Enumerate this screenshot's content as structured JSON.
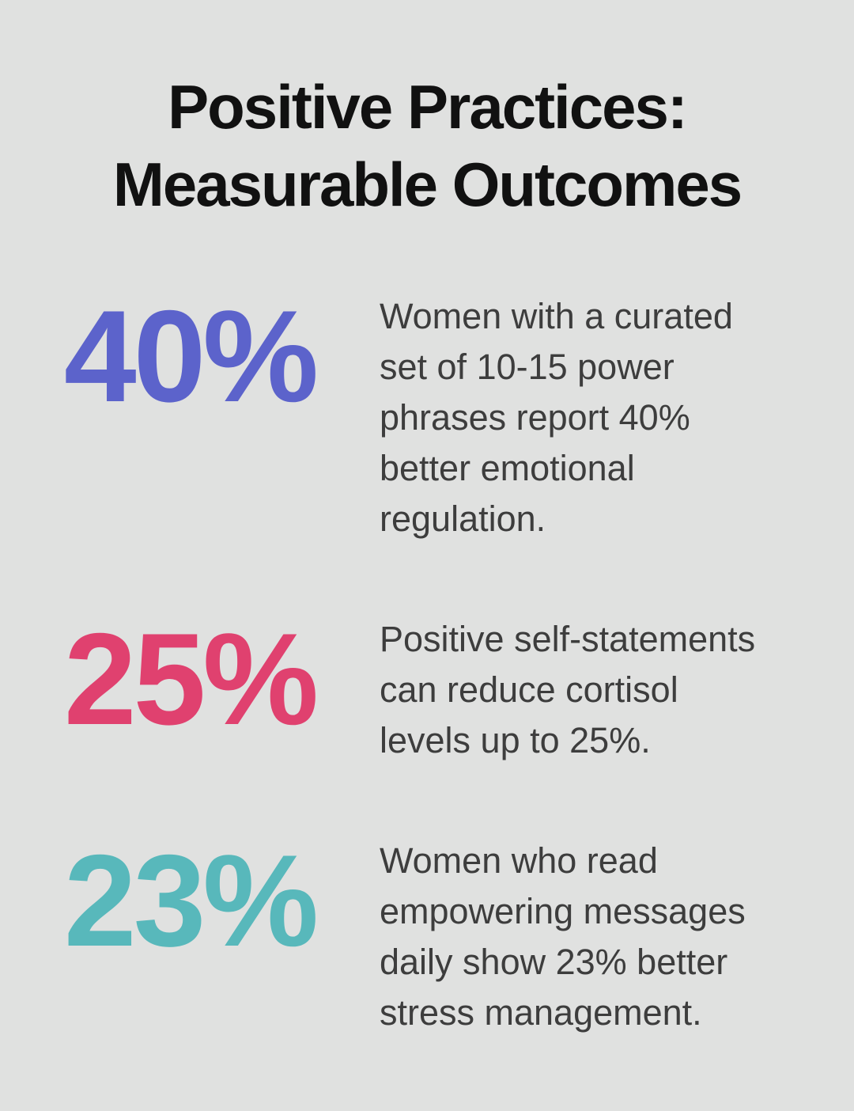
{
  "title": {
    "line1": "Positive Practices:",
    "line2": "Measurable Outcomes"
  },
  "colors": {
    "background": "#e0e1e0",
    "title_text": "#111111",
    "body_text": "#3d3d3d",
    "stat_purple": "#5c63cb",
    "stat_pink": "#e0416f",
    "stat_teal": "#58b8bb"
  },
  "stats": [
    {
      "value": "40%",
      "color": "#5c63cb",
      "description": "Women with a curated set of 10-15 power phrases report 40% better emotional regulation."
    },
    {
      "value": "25%",
      "color": "#e0416f",
      "description": "Positive self-statements can reduce cortisol levels up to 25%."
    },
    {
      "value": "23%",
      "color": "#58b8bb",
      "description": "Women who read empowering messages daily show 23% better stress management."
    }
  ]
}
